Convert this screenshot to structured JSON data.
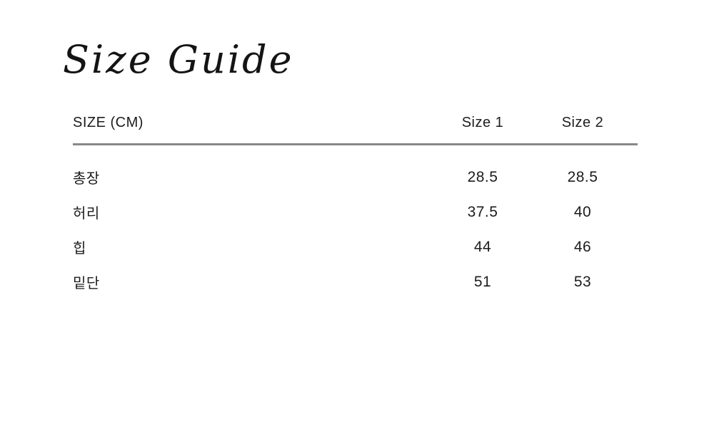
{
  "page": {
    "title": "Size Guide"
  },
  "table": {
    "header": {
      "label": "SIZE (CM)",
      "columns": [
        "Size 1",
        "Size 2"
      ]
    },
    "rows": [
      {
        "label": "총장",
        "values": [
          "28.5",
          "28.5"
        ]
      },
      {
        "label": "허리",
        "values": [
          "37.5",
          "40"
        ]
      },
      {
        "label": "힙",
        "values": [
          "44",
          "46"
        ]
      },
      {
        "label": "밑단",
        "values": [
          "51",
          "53"
        ]
      }
    ],
    "colors": {
      "text": "#1c1c1c",
      "divider": "#8b8687",
      "background": "#ffffff"
    }
  }
}
